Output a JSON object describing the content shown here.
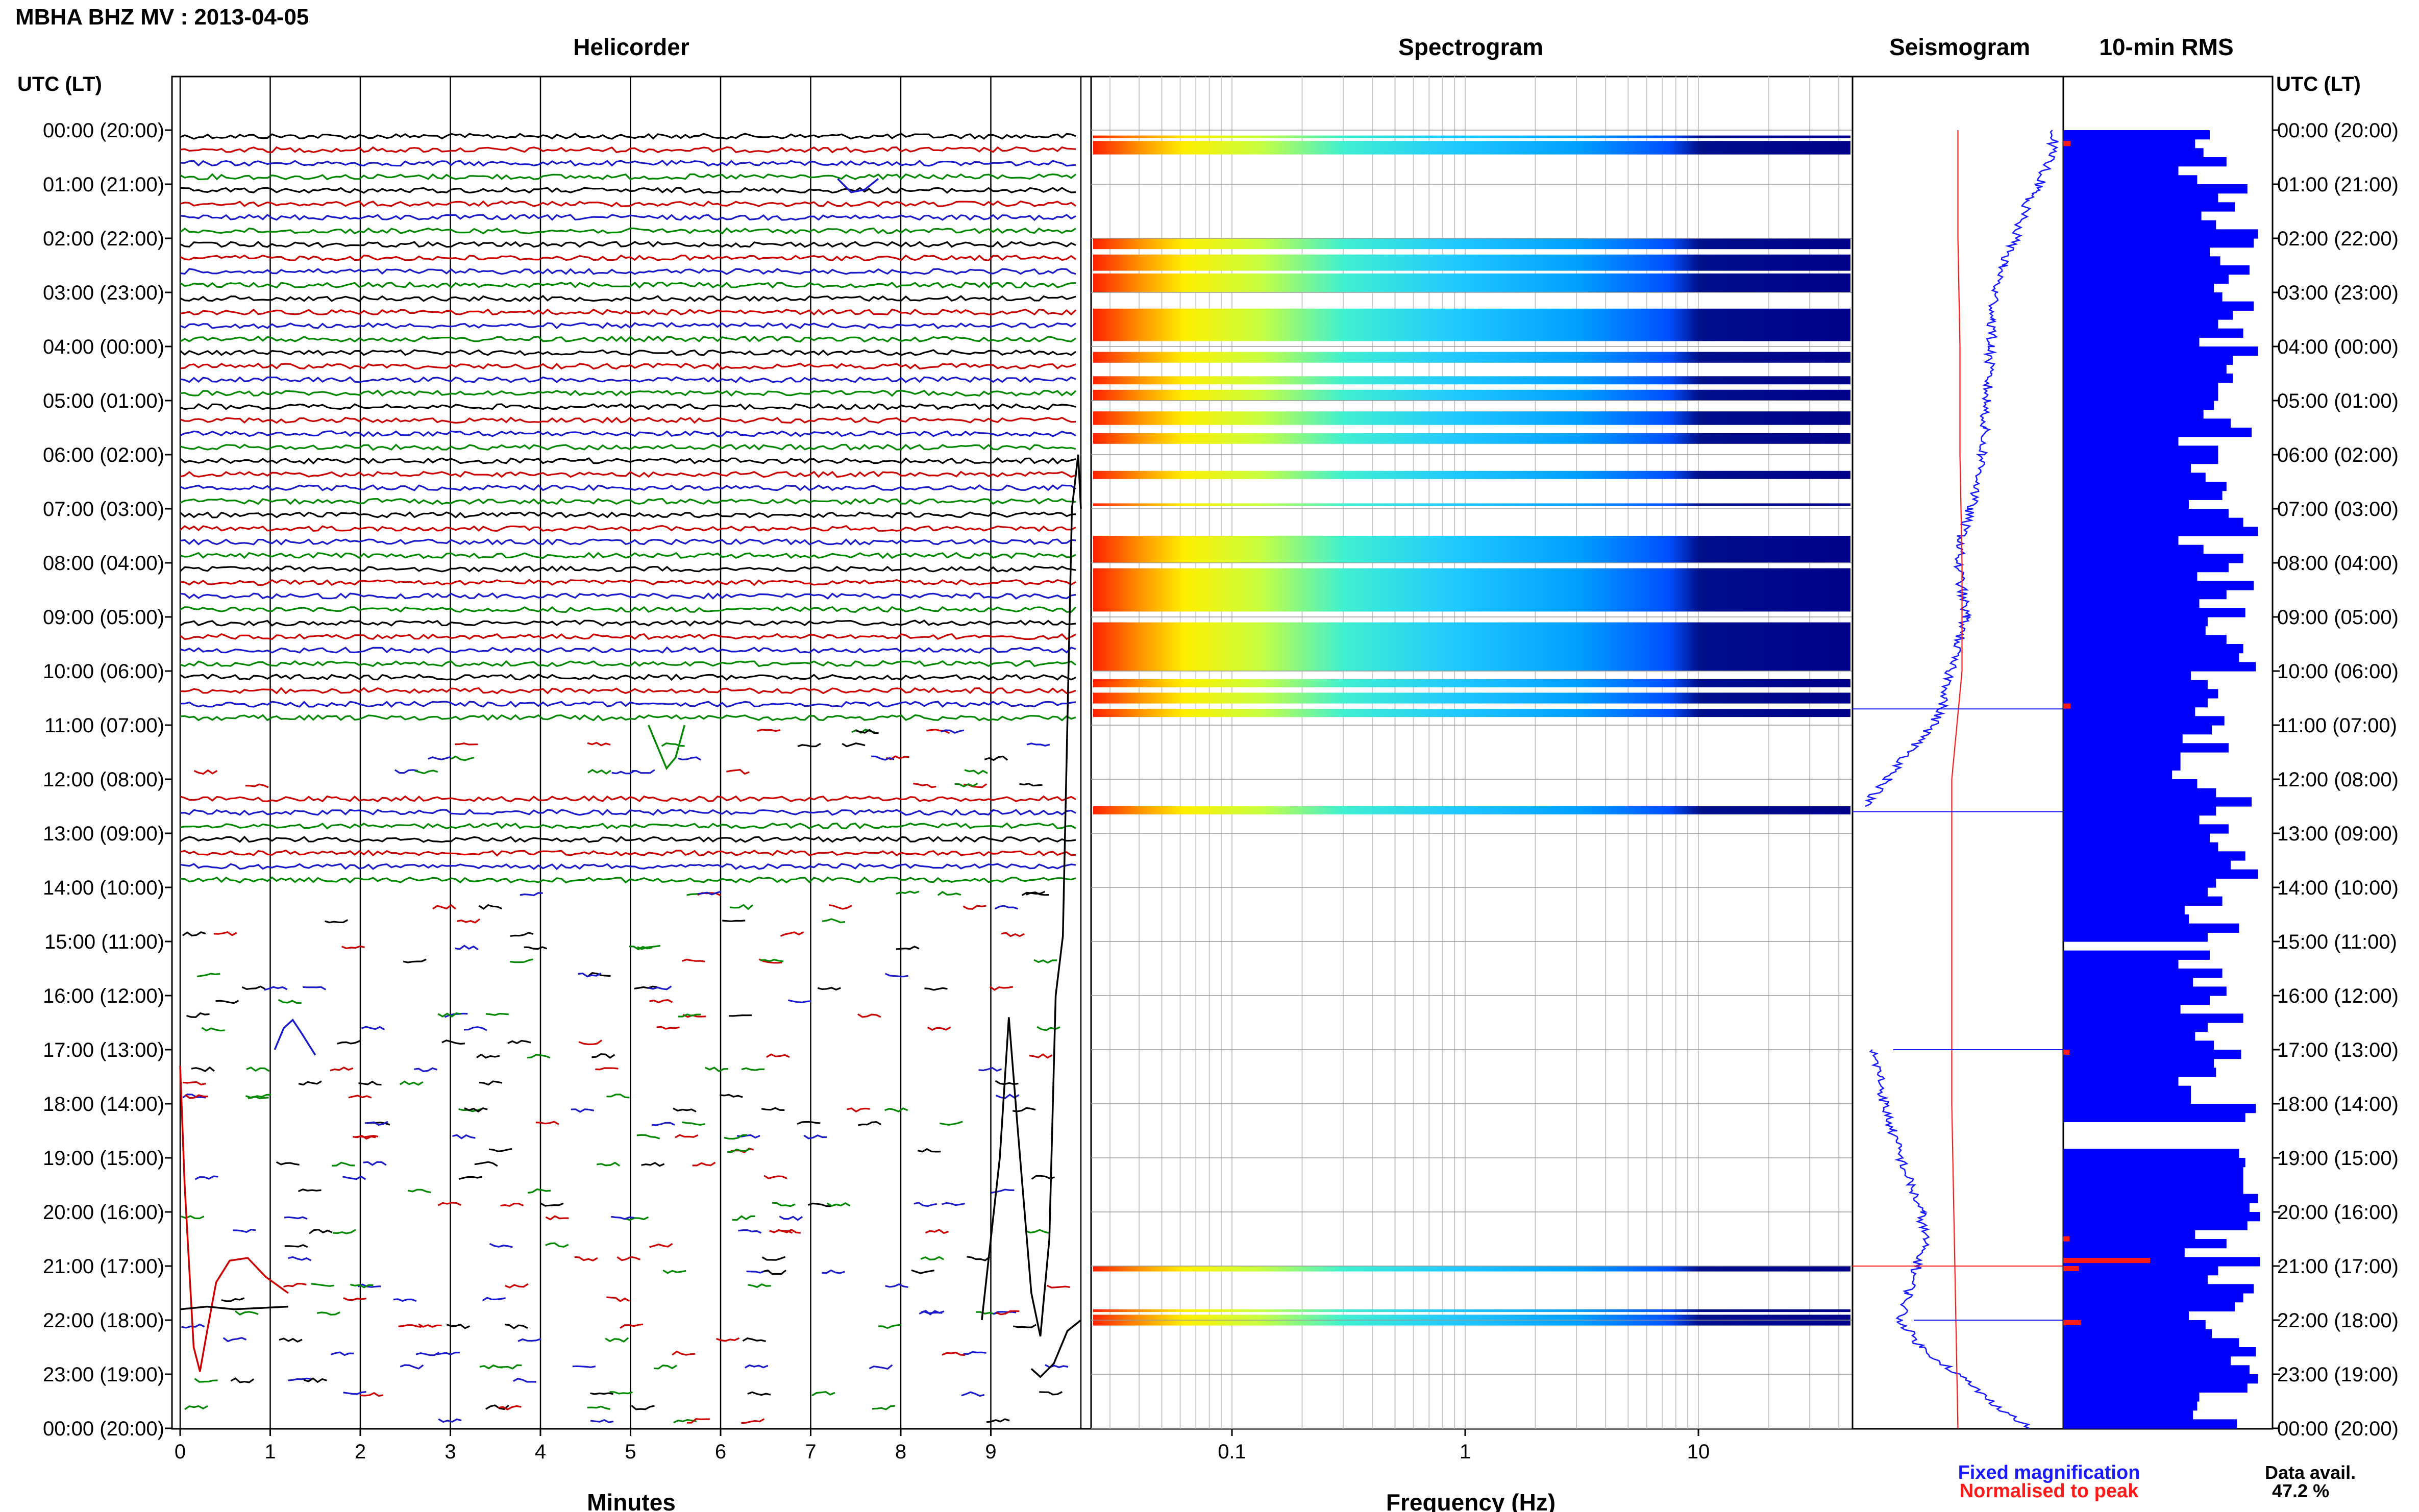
{
  "header": {
    "station_title": "MBHA BHZ MV : 2013-04-05",
    "time_label_left": "UTC (LT)",
    "time_label_right": "UTC (LT)"
  },
  "panels": {
    "helicorder_title": "Helicorder",
    "spectrogram_title": "Spectrogram",
    "seismogram_title": "Seismogram",
    "rms_title": "10-min RMS"
  },
  "time_ticks": [
    "00:00 (20:00)",
    "01:00 (21:00)",
    "02:00 (22:00)",
    "03:00 (23:00)",
    "04:00 (00:00)",
    "05:00 (01:00)",
    "06:00 (02:00)",
    "07:00 (03:00)",
    "08:00 (04:00)",
    "09:00 (05:00)",
    "10:00 (06:00)",
    "11:00 (07:00)",
    "12:00 (08:00)",
    "13:00 (09:00)",
    "14:00 (10:00)",
    "15:00 (11:00)",
    "16:00 (12:00)",
    "17:00 (13:00)",
    "18:00 (14:00)",
    "19:00 (15:00)",
    "20:00 (16:00)",
    "21:00 (17:00)",
    "22:00 (18:00)",
    "23:00 (19:00)",
    "00:00 (20:00)"
  ],
  "legend": {
    "fixed_label": "Fixed magnification",
    "normalised_label": "Normalised to peak",
    "fixed_color": "#1a1aff",
    "normalised_color": "#ff1a1a",
    "data_avail_label": "Data avail.",
    "data_avail_value": "47.2 %"
  },
  "chart_data": [
    {
      "type": "line",
      "title": "Helicorder",
      "xlabel": "Minutes",
      "x_ticks": [
        "0",
        "1",
        "2",
        "3",
        "4",
        "5",
        "6",
        "7",
        "8",
        "9"
      ],
      "xlim": [
        0,
        10
      ],
      "ylim": [
        0,
        24
      ],
      "trace_colors": [
        "#000000",
        "#cc0000",
        "#1a1acc",
        "#008800"
      ],
      "active_hours": [
        [
          0,
          11
        ],
        [
          12.2,
          13.9
        ]
      ],
      "sparse_hours": [
        [
          11,
          12.2
        ],
        [
          13.9,
          24
        ]
      ],
      "dense_segments_hours": [
        21.4,
        22.8
      ],
      "notable_events_hours": [
        15.0,
        16.4,
        21.1,
        22.0,
        22.7
      ]
    },
    {
      "type": "heatmap",
      "title": "Spectrogram",
      "xlabel": "Frequency (Hz)",
      "x_scale": "log",
      "x_ticks": [
        "0.1",
        "1",
        "10"
      ],
      "xlim": [
        0.03,
        50
      ],
      "ylim": [
        0,
        24
      ],
      "colormap": [
        "#00008b",
        "#0040ff",
        "#00c0ff",
        "#40ffc0",
        "#ffff00",
        "#ff8000",
        "#ff2000"
      ],
      "bands_hours": [
        [
          0.1,
          0.15
        ],
        [
          0.2,
          0.45
        ],
        [
          2.0,
          2.2
        ],
        [
          2.3,
          2.6
        ],
        [
          2.65,
          3.0
        ],
        [
          3.3,
          3.9
        ],
        [
          4.1,
          4.3
        ],
        [
          4.55,
          4.7
        ],
        [
          4.8,
          5.0
        ],
        [
          5.2,
          5.45
        ],
        [
          5.6,
          5.8
        ],
        [
          6.3,
          6.45
        ],
        [
          6.9,
          6.95
        ],
        [
          7.5,
          8.0
        ],
        [
          8.1,
          8.9
        ],
        [
          9.1,
          10.0
        ],
        [
          10.15,
          10.3
        ],
        [
          10.4,
          10.6
        ],
        [
          10.7,
          10.85
        ],
        [
          12.5,
          12.65
        ],
        [
          21.0,
          21.1
        ],
        [
          21.8,
          21.85
        ],
        [
          21.9,
          22.1
        ]
      ]
    },
    {
      "type": "line",
      "title": "Seismogram",
      "ylim": [
        0,
        24
      ],
      "series": [
        {
          "name": "Fixed magnification",
          "color": "#1a1aff",
          "hours": [
            0,
            0.5,
            1,
            1.3,
            2,
            2.5,
            3,
            3.5,
            4,
            4.5,
            5,
            5.5,
            6,
            6.5,
            7,
            7.5,
            8,
            8.5,
            9,
            9.5,
            10,
            10.5,
            11,
            11.5,
            12,
            12.5,
            13,
            13.5,
            14,
            14.5,
            15,
            15.5,
            16,
            16.5,
            17,
            17.5,
            18,
            18.5,
            19,
            19.5,
            20,
            20.5,
            21,
            21.5,
            22,
            22.5,
            23,
            23.5,
            24
          ],
          "values": [
            0.98,
            0.95,
            0.9,
            0.84,
            0.78,
            0.72,
            0.68,
            0.67,
            0.66,
            0.65,
            0.64,
            0.63,
            0.62,
            0.6,
            0.56,
            0.52,
            0.5,
            0.52,
            0.54,
            0.5,
            0.46,
            0.44,
            0.38,
            0.26,
            0.16,
            0.04,
            null,
            null,
            null,
            null,
            null,
            null,
            null,
            null,
            0.08,
            0.12,
            0.14,
            0.18,
            0.22,
            0.27,
            0.32,
            0.34,
            0.3,
            0.26,
            0.22,
            0.32,
            0.5,
            0.66,
            0.85
          ]
        },
        {
          "name": "Normalised to peak",
          "color": "#ff1a1a",
          "hours": [
            0,
            2,
            4,
            6,
            8,
            10,
            12,
            14,
            16,
            18,
            20,
            22,
            24
          ],
          "values": [
            0.5,
            0.5,
            0.51,
            0.51,
            0.52,
            0.52,
            0.47,
            0.47,
            0.47,
            0.47,
            0.48,
            0.49,
            0.5
          ]
        }
      ]
    },
    {
      "type": "bar",
      "title": "10-min RMS",
      "orientation": "horizontal",
      "bar_color": "#0000ff",
      "missing_marker_color": "#ff1a1a",
      "ylim": [
        0,
        24
      ],
      "bars_per_hour": 6,
      "blocks_hours": [
        [
          0,
          15
        ],
        [
          15.1,
          18.3
        ],
        [
          18.7,
          24
        ]
      ],
      "values": [
        0.7,
        0.63,
        0.67,
        0.78,
        0.55,
        0.64,
        0.88,
        0.74,
        0.82,
        0.66,
        0.73,
        0.93,
        0.91,
        0.7,
        0.75,
        0.89,
        0.79,
        0.72,
        0.76,
        0.91,
        0.81,
        0.74,
        0.86,
        0.65,
        0.93,
        0.81,
        0.78,
        0.81,
        0.74,
        0.74,
        0.72,
        0.67,
        0.8,
        0.9,
        0.55,
        0.74,
        0.74,
        0.61,
        0.68,
        0.78,
        0.76,
        0.6,
        0.79,
        0.86,
        0.93,
        0.55,
        0.67,
        0.86,
        0.79,
        0.64,
        0.91,
        0.78,
        0.65,
        0.87,
        0.69,
        0.68,
        0.78,
        0.86,
        0.84,
        0.92,
        0.61,
        0.69,
        0.74,
        0.69,
        0.63,
        0.77,
        0.71,
        0.57,
        0.79,
        0.56,
        0.56,
        0.52,
        0.64,
        0.73,
        0.9,
        0.73,
        0.65,
        0.79,
        0.7,
        0.74,
        0.87,
        0.8,
        0.93,
        0.73,
        0.69,
        0.76,
        0.58,
        0.6,
        0.84,
        0.69,
        0.58,
        0.7,
        0.55,
        0.76,
        0.62,
        0.78,
        0.7,
        0.56,
        0.86,
        0.69,
        0.63,
        0.72,
        0.85,
        0.72,
        0.73,
        0.55,
        0.61,
        0.61,
        0.92,
        0.87,
        0.7,
        0.64,
        0.82,
        0.84,
        0.87,
        0.86,
        0.86,
        0.86,
        0.93,
        0.89,
        0.94,
        0.88,
        0.63,
        0.78,
        0.58,
        0.94,
        0.74,
        0.69,
        0.91,
        0.86,
        0.82,
        0.6,
        0.68,
        0.71,
        0.84,
        0.92,
        0.8,
        0.89,
        0.93,
        0.88,
        0.65,
        0.64,
        0.62,
        0.83,
        0.85,
        0.83,
        0.74,
        0.61
      ]
    }
  ]
}
